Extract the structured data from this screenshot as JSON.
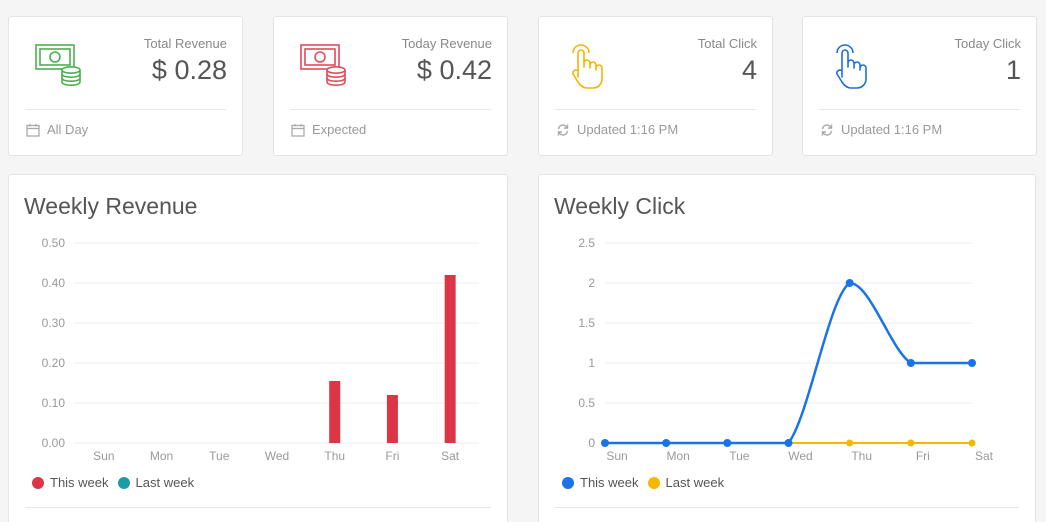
{
  "stats": [
    {
      "label": "Total Revenue",
      "value": "$ 0.28",
      "footer": "All Day",
      "icon": "money-icon",
      "footer_icon": "calendar-icon",
      "color": "#4caf50"
    },
    {
      "label": "Today Revenue",
      "value": "$ 0.42",
      "footer": "Expected",
      "icon": "money-icon",
      "footer_icon": "calendar-icon",
      "color": "#e04b5a"
    },
    {
      "label": "Total Click",
      "value": "4",
      "footer": "Updated 1:16 PM",
      "icon": "pointer-hand-icon",
      "footer_icon": "refresh-icon",
      "color": "#f5b400"
    },
    {
      "label": "Today Click",
      "value": "1",
      "footer": "Updated 1:16 PM",
      "icon": "pointer-hand-icon",
      "footer_icon": "refresh-icon",
      "color": "#1e6fd9"
    }
  ],
  "chart_data": [
    {
      "type": "bar",
      "title": "Weekly Revenue",
      "categories": [
        "Sun",
        "Mon",
        "Tue",
        "Wed",
        "Thu",
        "Fri",
        "Sat"
      ],
      "yticks": [
        "0.00",
        "0.10",
        "0.20",
        "0.30",
        "0.40",
        "0.50"
      ],
      "ylim": [
        0,
        0.5
      ],
      "series": [
        {
          "name": "This week",
          "color": "#dc3545",
          "values": [
            0,
            0,
            0,
            0,
            0.155,
            0.12,
            0.42
          ]
        },
        {
          "name": "Last week",
          "color": "#1a9ba5",
          "values": [
            0,
            0,
            0,
            0,
            0,
            0,
            0
          ]
        }
      ],
      "legend": "bottom-left",
      "grid": true
    },
    {
      "type": "line",
      "title": "Weekly Click",
      "categories": [
        "Sun",
        "Mon",
        "Tue",
        "Wed",
        "Thu",
        "Fri",
        "Sat"
      ],
      "yticks": [
        "0",
        "0.5",
        "1",
        "1.5",
        "2",
        "2.5"
      ],
      "ylim": [
        0,
        2.5
      ],
      "series": [
        {
          "name": "This week",
          "color": "#1a73e8",
          "values": [
            0,
            0,
            0,
            0,
            2,
            1,
            1
          ]
        },
        {
          "name": "Last week",
          "color": "#f5b800",
          "values": [
            0,
            0,
            0,
            0,
            0,
            0,
            0
          ]
        }
      ],
      "legend": "bottom-left",
      "grid": true
    }
  ]
}
